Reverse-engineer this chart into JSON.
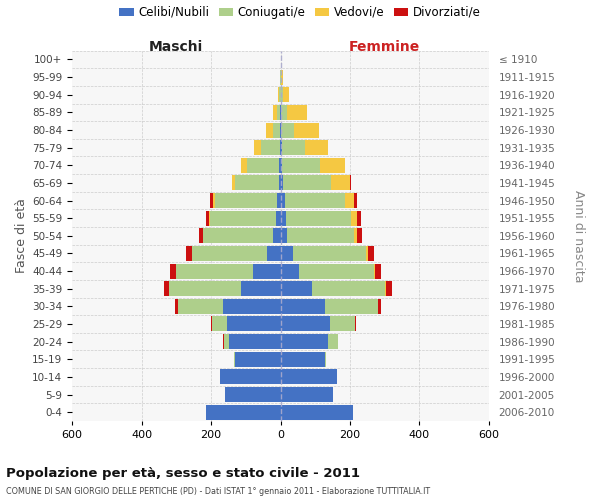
{
  "age_groups": [
    "0-4",
    "5-9",
    "10-14",
    "15-19",
    "20-24",
    "25-29",
    "30-34",
    "35-39",
    "40-44",
    "45-49",
    "50-54",
    "55-59",
    "60-64",
    "65-69",
    "70-74",
    "75-79",
    "80-84",
    "85-89",
    "90-94",
    "95-99",
    "100+"
  ],
  "birth_years": [
    "2006-2010",
    "2001-2005",
    "1996-2000",
    "1991-1995",
    "1986-1990",
    "1981-1985",
    "1976-1980",
    "1971-1975",
    "1966-1970",
    "1961-1965",
    "1956-1960",
    "1951-1955",
    "1946-1950",
    "1941-1945",
    "1936-1940",
    "1931-1935",
    "1926-1930",
    "1921-1925",
    "1916-1920",
    "1911-1915",
    "≤ 1910"
  ],
  "male_celibi": [
    215,
    160,
    175,
    130,
    148,
    155,
    165,
    115,
    80,
    40,
    22,
    13,
    10,
    5,
    4,
    2,
    1,
    1,
    0,
    0,
    0
  ],
  "male_coniugati": [
    0,
    0,
    0,
    3,
    16,
    42,
    130,
    205,
    220,
    215,
    200,
    190,
    180,
    125,
    92,
    55,
    22,
    10,
    3,
    1,
    0
  ],
  "male_vedovi": [
    0,
    0,
    0,
    0,
    0,
    0,
    0,
    0,
    0,
    1,
    2,
    3,
    5,
    10,
    18,
    18,
    18,
    12,
    3,
    1,
    0
  ],
  "male_divorziati": [
    0,
    0,
    0,
    0,
    1,
    2,
    8,
    15,
    18,
    15,
    10,
    8,
    8,
    1,
    0,
    0,
    0,
    0,
    0,
    0,
    0
  ],
  "fem_nubili": [
    210,
    152,
    162,
    128,
    138,
    143,
    128,
    90,
    52,
    35,
    20,
    15,
    12,
    8,
    5,
    3,
    2,
    2,
    1,
    0,
    0
  ],
  "fem_coniugate": [
    0,
    0,
    0,
    4,
    28,
    72,
    152,
    212,
    218,
    212,
    192,
    188,
    173,
    138,
    108,
    68,
    38,
    18,
    5,
    2,
    0
  ],
  "fem_vedove": [
    0,
    0,
    0,
    0,
    0,
    0,
    0,
    1,
    2,
    5,
    8,
    18,
    28,
    55,
    72,
    65,
    70,
    55,
    18,
    5,
    1
  ],
  "fem_divorziate": [
    0,
    0,
    0,
    0,
    1,
    3,
    10,
    18,
    16,
    18,
    15,
    10,
    8,
    2,
    2,
    1,
    0,
    0,
    0,
    0,
    0
  ],
  "colors": {
    "celibi": "#4472C4",
    "coniugati": "#AECF8B",
    "vedovi": "#F5C842",
    "divorziati": "#CC1010"
  },
  "xlim": 600,
  "title": "Popolazione per età, sesso e stato civile - 2011",
  "subtitle": "COMUNE DI SAN GIORGIO DELLE PERTICHE (PD) - Dati ISTAT 1° gennaio 2011 - Elaborazione TUTTITALIA.IT",
  "ylabel": "Fasce di età",
  "ylabel_right": "Anni di nascita",
  "label_maschi": "Maschi",
  "label_femmine": "Femmine",
  "legend_labels": [
    "Celibi/Nubili",
    "Coniugati/e",
    "Vedovi/e",
    "Divorziati/e"
  ],
  "bg_color": "#FFFFFF",
  "plot_bg": "#F7F7F7",
  "grid_color": "#CCCCCC"
}
